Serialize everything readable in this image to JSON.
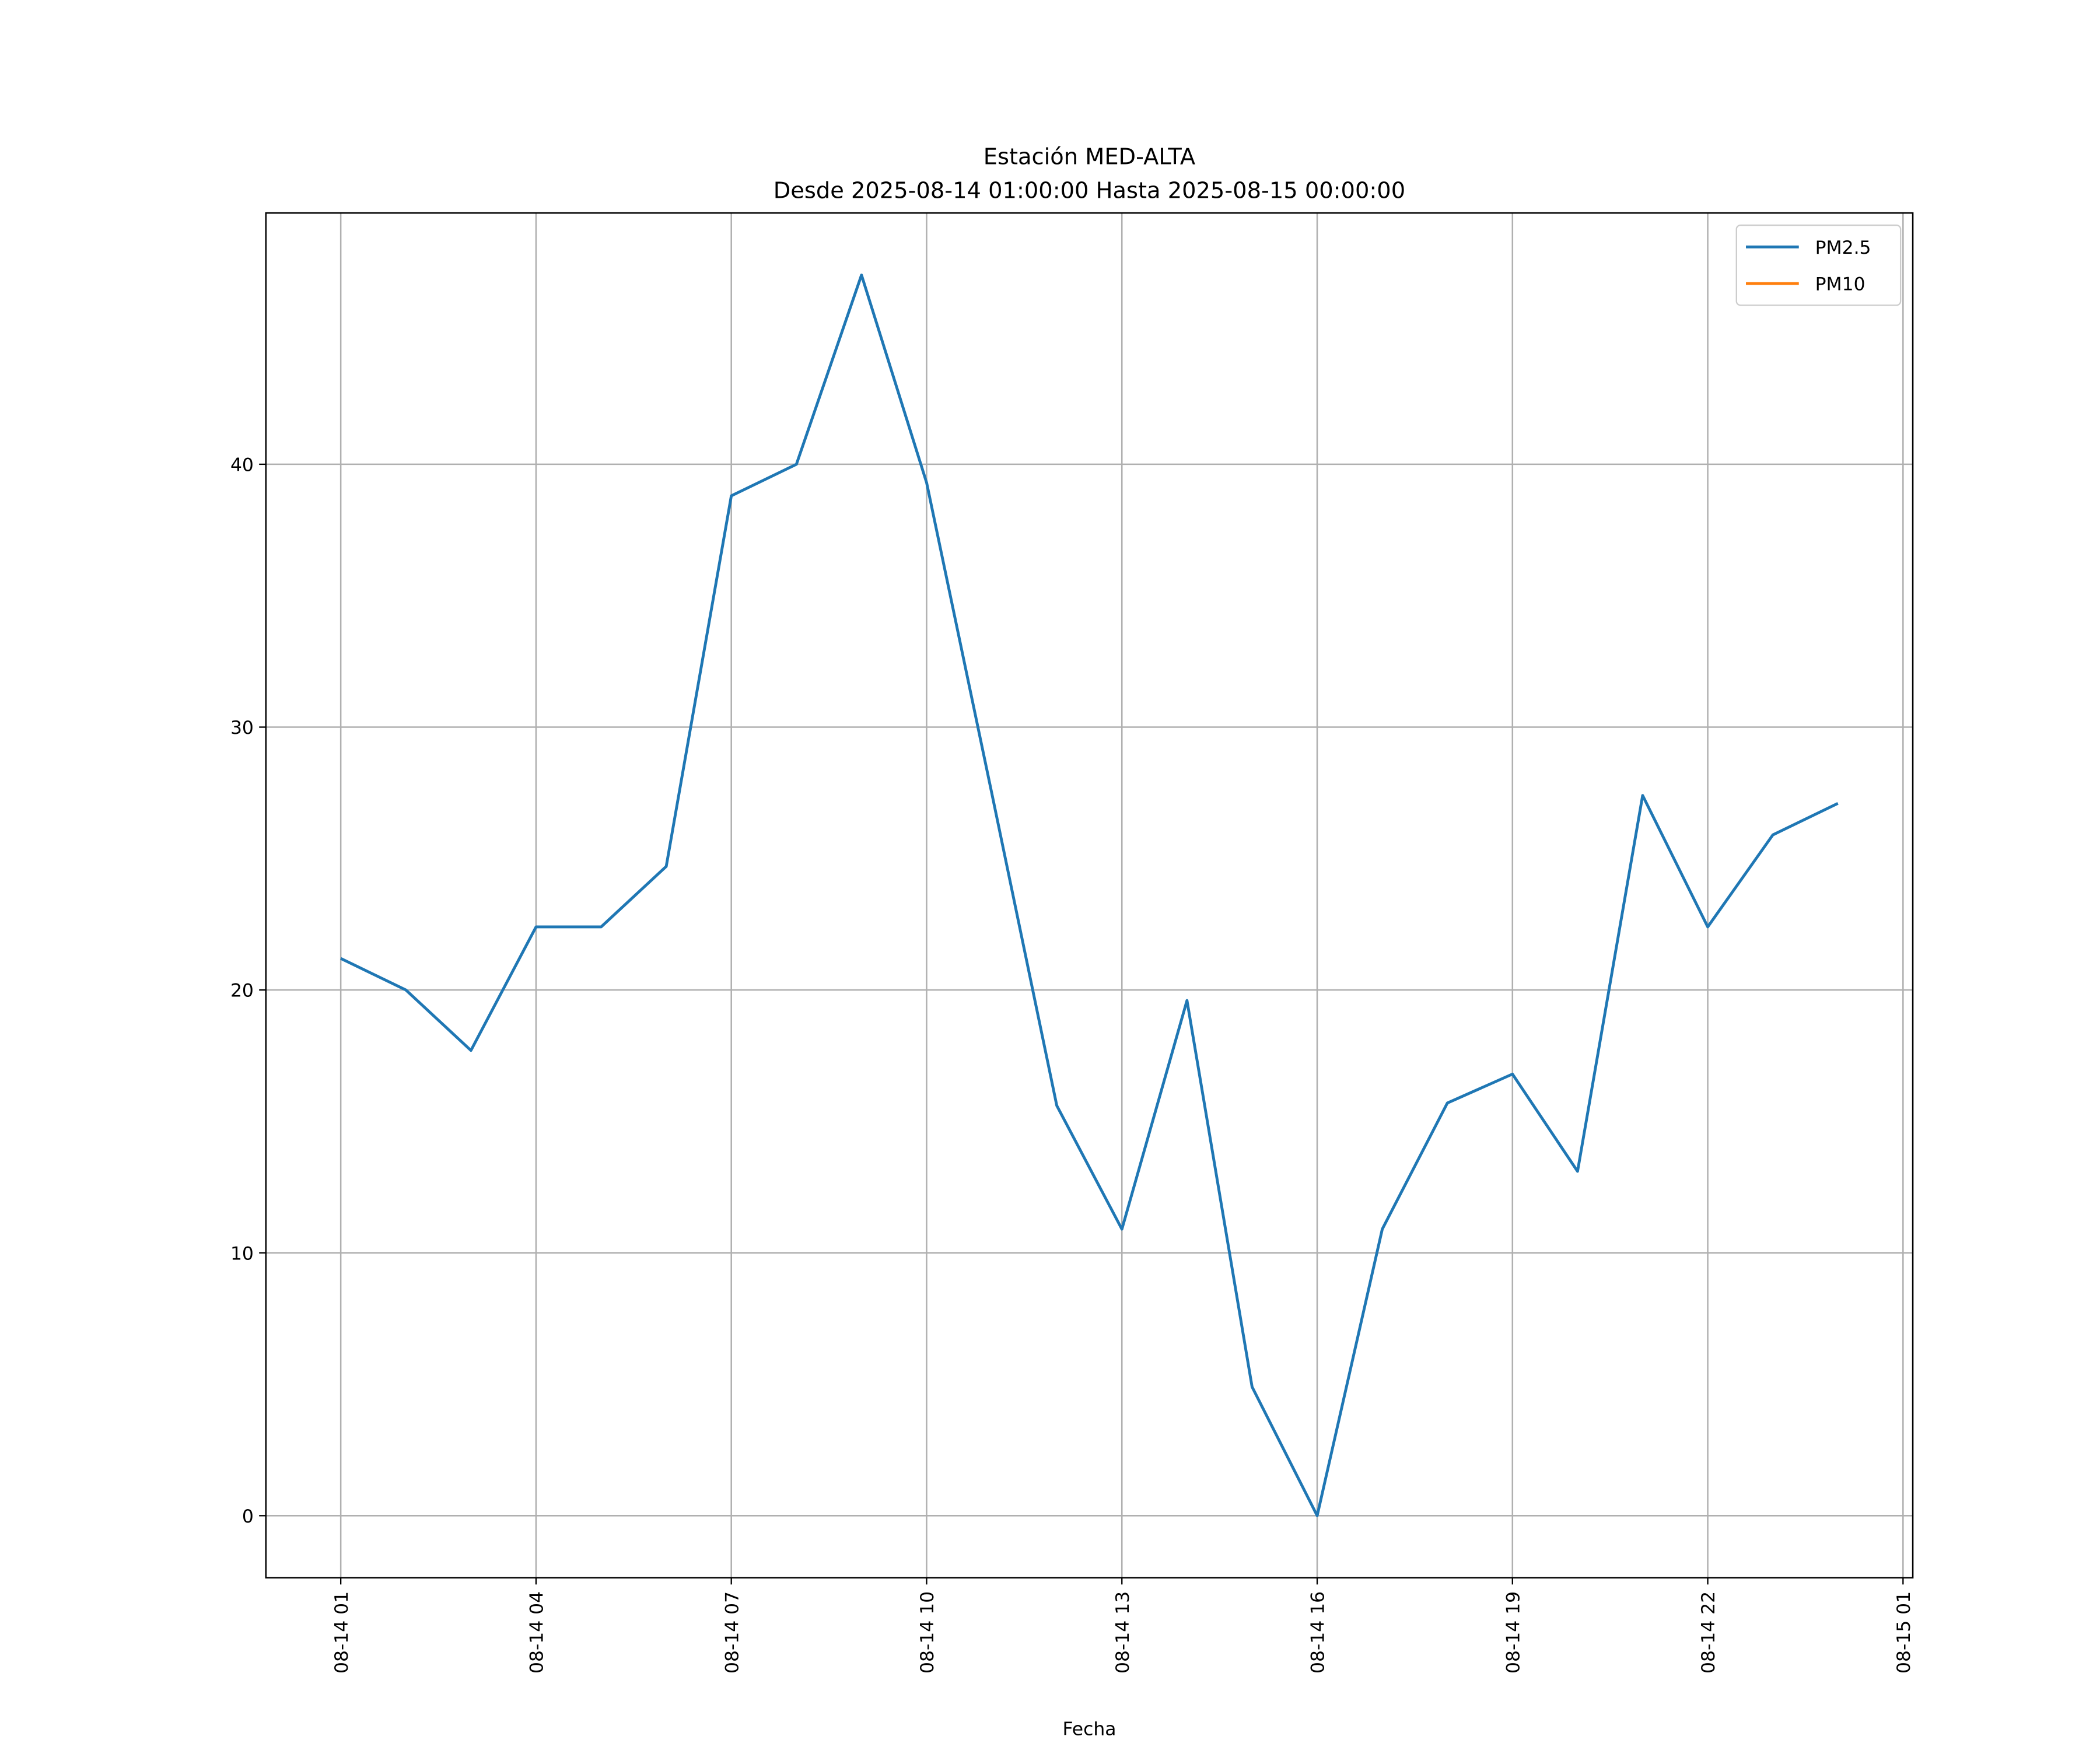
{
  "chart_data": {
    "type": "line",
    "title": "Estación MED-ALTA",
    "subtitle": "Desde 2025-08-14 01:00:00 Hasta 2025-08-15 00:00:00",
    "x_label": "Fecha",
    "x": [
      "08-14 01",
      "08-14 02",
      "08-14 03",
      "08-14 04",
      "08-14 05",
      "08-14 06",
      "08-14 07",
      "08-14 08",
      "08-14 09",
      "08-14 10",
      "08-14 11",
      "08-14 12",
      "08-14 13",
      "08-14 14",
      "08-14 15",
      "08-14 16",
      "08-14 17",
      "08-14 18",
      "08-14 19",
      "08-14 20",
      "08-14 21",
      "08-14 22",
      "08-14 23",
      "08-15 00"
    ],
    "series": [
      {
        "name": "PM2.5",
        "color": "#1f77b4",
        "values": [
          21.2,
          20.0,
          17.7,
          22.4,
          22.4,
          24.7,
          38.8,
          40.0,
          47.2,
          39.3,
          27.5,
          15.6,
          10.9,
          19.6,
          4.9,
          0,
          10.9,
          15.7,
          16.8,
          13.1,
          27.4,
          22.4,
          25.9,
          27.1
        ]
      },
      {
        "name": "PM10",
        "color": "#ff7f0e",
        "values": [
          null,
          null,
          null,
          null,
          null,
          null,
          null,
          null,
          null,
          null,
          null,
          null,
          null,
          null,
          null,
          null,
          null,
          null,
          null,
          null,
          null,
          null,
          null,
          null
        ]
      }
    ],
    "xlim": [
      "08-13 23:51",
      "08-15 01:09"
    ],
    "xticks": [
      "08-14 01",
      "08-14 04",
      "08-14 07",
      "08-14 10",
      "08-14 13",
      "08-14 16",
      "08-14 19",
      "08-14 22",
      "08-15 01"
    ],
    "ylim": [
      -2.36,
      49.56
    ],
    "yticks": [
      0,
      10,
      20,
      30,
      40
    ],
    "grid": true,
    "legend": "upper right"
  }
}
